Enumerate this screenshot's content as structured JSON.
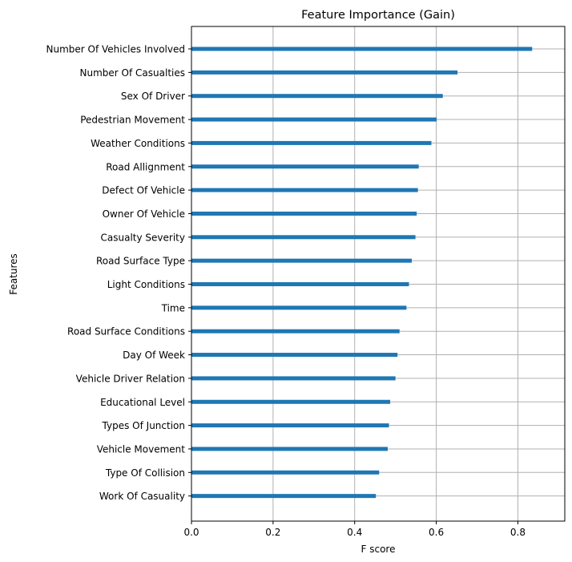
{
  "chart_data": {
    "type": "bar",
    "orientation": "horizontal",
    "title": "Feature Importance (Gain)",
    "xlabel": "F score",
    "ylabel": "Features",
    "xlim": [
      0,
      0.915
    ],
    "xticks": [
      0.0,
      0.2,
      0.4,
      0.6,
      0.8
    ],
    "xtick_labels": [
      "0.0",
      "0.2",
      "0.4",
      "0.6",
      "0.8"
    ],
    "grid": true,
    "bar_color": "#1f77b4",
    "grid_color": "#b0b0b0",
    "categories": [
      "Number Of Vehicles Involved",
      "Number Of Casualties",
      "Sex Of Driver",
      "Pedestrian Movement",
      "Weather Conditions",
      "Road Allignment",
      "Defect Of Vehicle",
      "Owner Of Vehicle",
      "Casualty Severity",
      "Road Surface Type",
      "Light Conditions",
      "Time",
      "Road Surface Conditions",
      "Day Of Week",
      "Vehicle Driver Relation",
      "Educational Level",
      "Types Of Junction",
      "Vehicle Movement",
      "Type Of Collision",
      "Work Of Casuality"
    ],
    "values": [
      0.835,
      0.652,
      0.616,
      0.601,
      0.588,
      0.557,
      0.555,
      0.552,
      0.549,
      0.54,
      0.533,
      0.527,
      0.51,
      0.505,
      0.5,
      0.487,
      0.484,
      0.481,
      0.46,
      0.452
    ]
  }
}
